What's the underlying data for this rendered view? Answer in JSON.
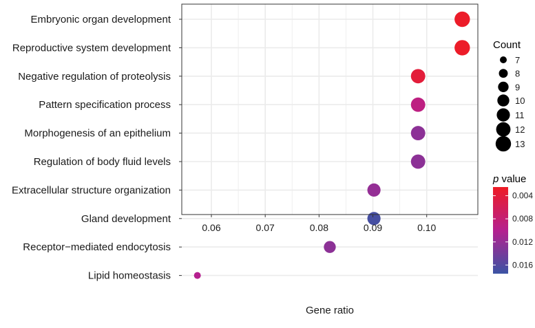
{
  "chart_data": {
    "type": "scatter",
    "subtype": "dot-plot",
    "xlabel": "Gene ratio",
    "ylabel": "",
    "xlim": [
      0.0545,
      0.1095
    ],
    "xticks": [
      0.06,
      0.07,
      0.08,
      0.09,
      0.1
    ],
    "xtick_labels": [
      "0.06",
      "0.07",
      "0.08",
      "0.09",
      "0.10"
    ],
    "grid": true,
    "categories": [
      "Embryonic organ development",
      "Reproductive system development",
      "Negative regulation of proteolysis",
      "Pattern specification process",
      "Morphogenesis of an epithelium",
      "Regulation of body fluid levels",
      "Extracellular structure organization",
      "Gland development",
      "Receptor−mediated endocytosis",
      "Lipid homeostasis"
    ],
    "points": [
      {
        "term": "Embryonic organ development",
        "gene_ratio": 0.1066,
        "count": 13,
        "p_value": 0.0028
      },
      {
        "term": "Reproductive system development",
        "gene_ratio": 0.1066,
        "count": 13,
        "p_value": 0.0028
      },
      {
        "term": "Negative regulation of proteolysis",
        "gene_ratio": 0.0984,
        "count": 12,
        "p_value": 0.004
      },
      {
        "term": "Pattern specification process",
        "gene_ratio": 0.0984,
        "count": 12,
        "p_value": 0.009
      },
      {
        "term": "Morphogenesis of an epithelium",
        "gene_ratio": 0.0984,
        "count": 12,
        "p_value": 0.0125
      },
      {
        "term": "Regulation of body fluid levels",
        "gene_ratio": 0.0984,
        "count": 12,
        "p_value": 0.0125
      },
      {
        "term": "Extracellular structure organization",
        "gene_ratio": 0.0902,
        "count": 11,
        "p_value": 0.012
      },
      {
        "term": "Gland development",
        "gene_ratio": 0.0902,
        "count": 11,
        "p_value": 0.0168
      },
      {
        "term": "Receptor−mediated endocytosis",
        "gene_ratio": 0.082,
        "count": 10,
        "p_value": 0.0125
      },
      {
        "term": "Lipid homeostasis",
        "gene_ratio": 0.0574,
        "count": 7,
        "p_value": 0.01
      }
    ],
    "size_legend": {
      "title": "Count",
      "values": [
        7,
        8,
        9,
        10,
        11,
        12,
        13
      ]
    },
    "color_legend": {
      "title_italic": "p",
      "title_rest": " value",
      "min": 0.0025,
      "max": 0.0175,
      "ticks": [
        0.004,
        0.008,
        0.012,
        0.016
      ],
      "tick_labels": [
        "0.004",
        "0.008",
        "0.012",
        "0.016"
      ],
      "low_color": "#ee1c25",
      "mid_color": "#b5208f",
      "high_color": "#3b54a4"
    },
    "panel_background": "#ffffff",
    "grid_color": "#ebebeb",
    "border_color": "#333333"
  }
}
